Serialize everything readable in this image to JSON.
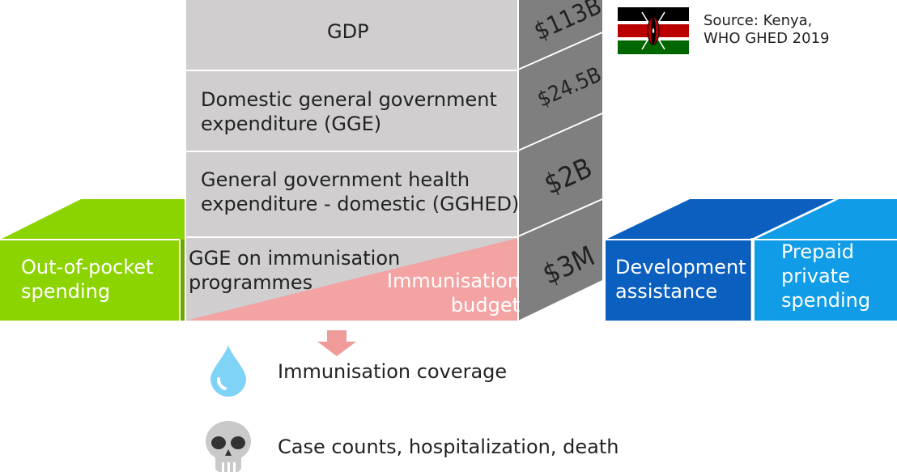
{
  "source": {
    "line1": "Source: Kenya,",
    "line2": "WHO GHED 2019"
  },
  "flag": {
    "name": "Kenya",
    "colors": {
      "black": "#000000",
      "red": "#bb0000",
      "green": "#006600",
      "white": "#ffffff"
    }
  },
  "stack": {
    "gdp": {
      "label": "GDP",
      "value": "$113B"
    },
    "gge": {
      "line1": "Domestic general government",
      "line2": "expenditure (GGE)",
      "value": "$24.5B"
    },
    "gghed": {
      "line1": "General government health",
      "line2": "expenditure - domestic (GGHED)",
      "value": "$2B"
    },
    "immunisation": {
      "line1": "GGE on immunisation",
      "line2": "programmes",
      "budget_line1": "Immunisation",
      "budget_line2": "budget",
      "value": "$3M"
    }
  },
  "side_blocks": {
    "out_of_pocket": {
      "line1": "Out-of-pocket",
      "line2": "spending",
      "color": "#8cd400"
    },
    "development": {
      "line1": "Development",
      "line2": "assistance",
      "color": "#0a5fbf"
    },
    "prepaid": {
      "line1": "Prepaid",
      "line2": "private",
      "line3": "spending",
      "color": "#109ce6"
    }
  },
  "outcomes": {
    "coverage": {
      "label": "Immunisation coverage",
      "icon": "water-drop-icon"
    },
    "cases": {
      "label": "Case counts, hospitalization, death",
      "icon": "skull-icon"
    }
  },
  "colors": {
    "block_face": "#d0cecf",
    "block_side": "#7f7f7f",
    "budget_pink": "#f4a3a3",
    "arrow_pink": "#f19a9a",
    "drop_blue": "#7fd3f7",
    "skull_grey": "#c9c9c9"
  }
}
